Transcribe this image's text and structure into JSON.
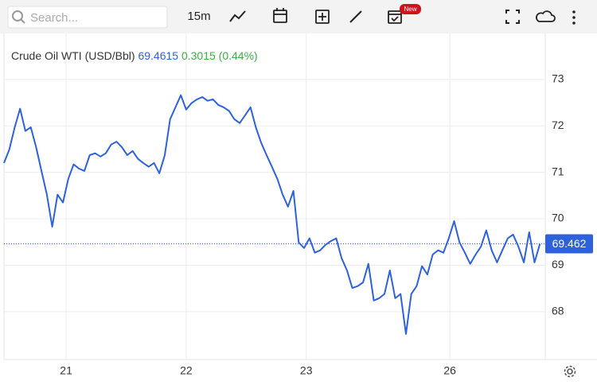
{
  "toolbar": {
    "search_placeholder": "Search...",
    "interval": "15m",
    "badge": "New"
  },
  "chart_data": {
    "type": "line",
    "title": "Crude Oil WTI (USD/Bbl)",
    "price": 69.4615,
    "change": "0.3015 (0.44%)",
    "color": "#2d62dc",
    "x": [
      0,
      1,
      2,
      3,
      4,
      5,
      6,
      7,
      8,
      9,
      10,
      11,
      12,
      13,
      14,
      15,
      16,
      17,
      18,
      19,
      20,
      21,
      22,
      23,
      24,
      25,
      26,
      27,
      28,
      29,
      30,
      31,
      32,
      33,
      34,
      35,
      36,
      37,
      38,
      39,
      40,
      41,
      42,
      43,
      44,
      45,
      46,
      47,
      48,
      49,
      50,
      51,
      52,
      53,
      54,
      55,
      56,
      57,
      58,
      59,
      60,
      61,
      62,
      63,
      64,
      65,
      66,
      67,
      68,
      69,
      70,
      71,
      72,
      73,
      74,
      75,
      76,
      77,
      78,
      79,
      80,
      81,
      82,
      83,
      84,
      85,
      86,
      87,
      88,
      89,
      90,
      91,
      92,
      93,
      94,
      95,
      96,
      97,
      98,
      99,
      100
    ],
    "values": [
      71.2,
      71.49,
      71.97,
      72.37,
      71.89,
      71.97,
      71.54,
      71.03,
      70.52,
      69.83,
      70.52,
      70.35,
      70.86,
      71.17,
      71.08,
      71.03,
      71.37,
      71.41,
      71.34,
      71.41,
      71.6,
      71.66,
      71.54,
      71.37,
      71.46,
      71.29,
      71.2,
      71.12,
      71.2,
      70.98,
      71.37,
      72.14,
      72.4,
      72.66,
      72.35,
      72.49,
      72.57,
      72.62,
      72.54,
      72.57,
      72.45,
      72.4,
      72.32,
      72.14,
      72.06,
      72.23,
      72.4,
      71.97,
      71.63,
      71.37,
      71.12,
      70.86,
      70.52,
      70.26,
      70.6,
      69.49,
      69.37,
      69.58,
      69.27,
      69.32,
      69.44,
      69.52,
      69.58,
      69.15,
      68.89,
      68.51,
      68.55,
      68.63,
      69.03,
      68.24,
      68.29,
      68.38,
      68.89,
      68.29,
      68.38,
      67.52,
      68.38,
      68.55,
      68.98,
      68.8,
      69.23,
      69.32,
      69.27,
      69.58,
      69.95,
      69.49,
      69.27,
      69.03,
      69.23,
      69.4,
      69.75,
      69.32,
      69.06,
      69.32,
      69.58,
      69.66,
      69.4,
      69.06,
      69.71,
      69.06,
      69.4615
    ],
    "xlim": [
      0,
      101
    ],
    "ylim": [
      66.97,
      73.99
    ],
    "xticks": [
      {
        "value": 11.6,
        "label": "21"
      },
      {
        "value": 34.0,
        "label": "22"
      },
      {
        "value": 56.4,
        "label": "23"
      },
      {
        "value": 83.2,
        "label": "26"
      }
    ],
    "yticks": [
      68,
      69,
      70,
      71,
      72,
      73
    ],
    "grid": true,
    "price_line": {
      "value": 69.462,
      "label": "69.462"
    }
  }
}
